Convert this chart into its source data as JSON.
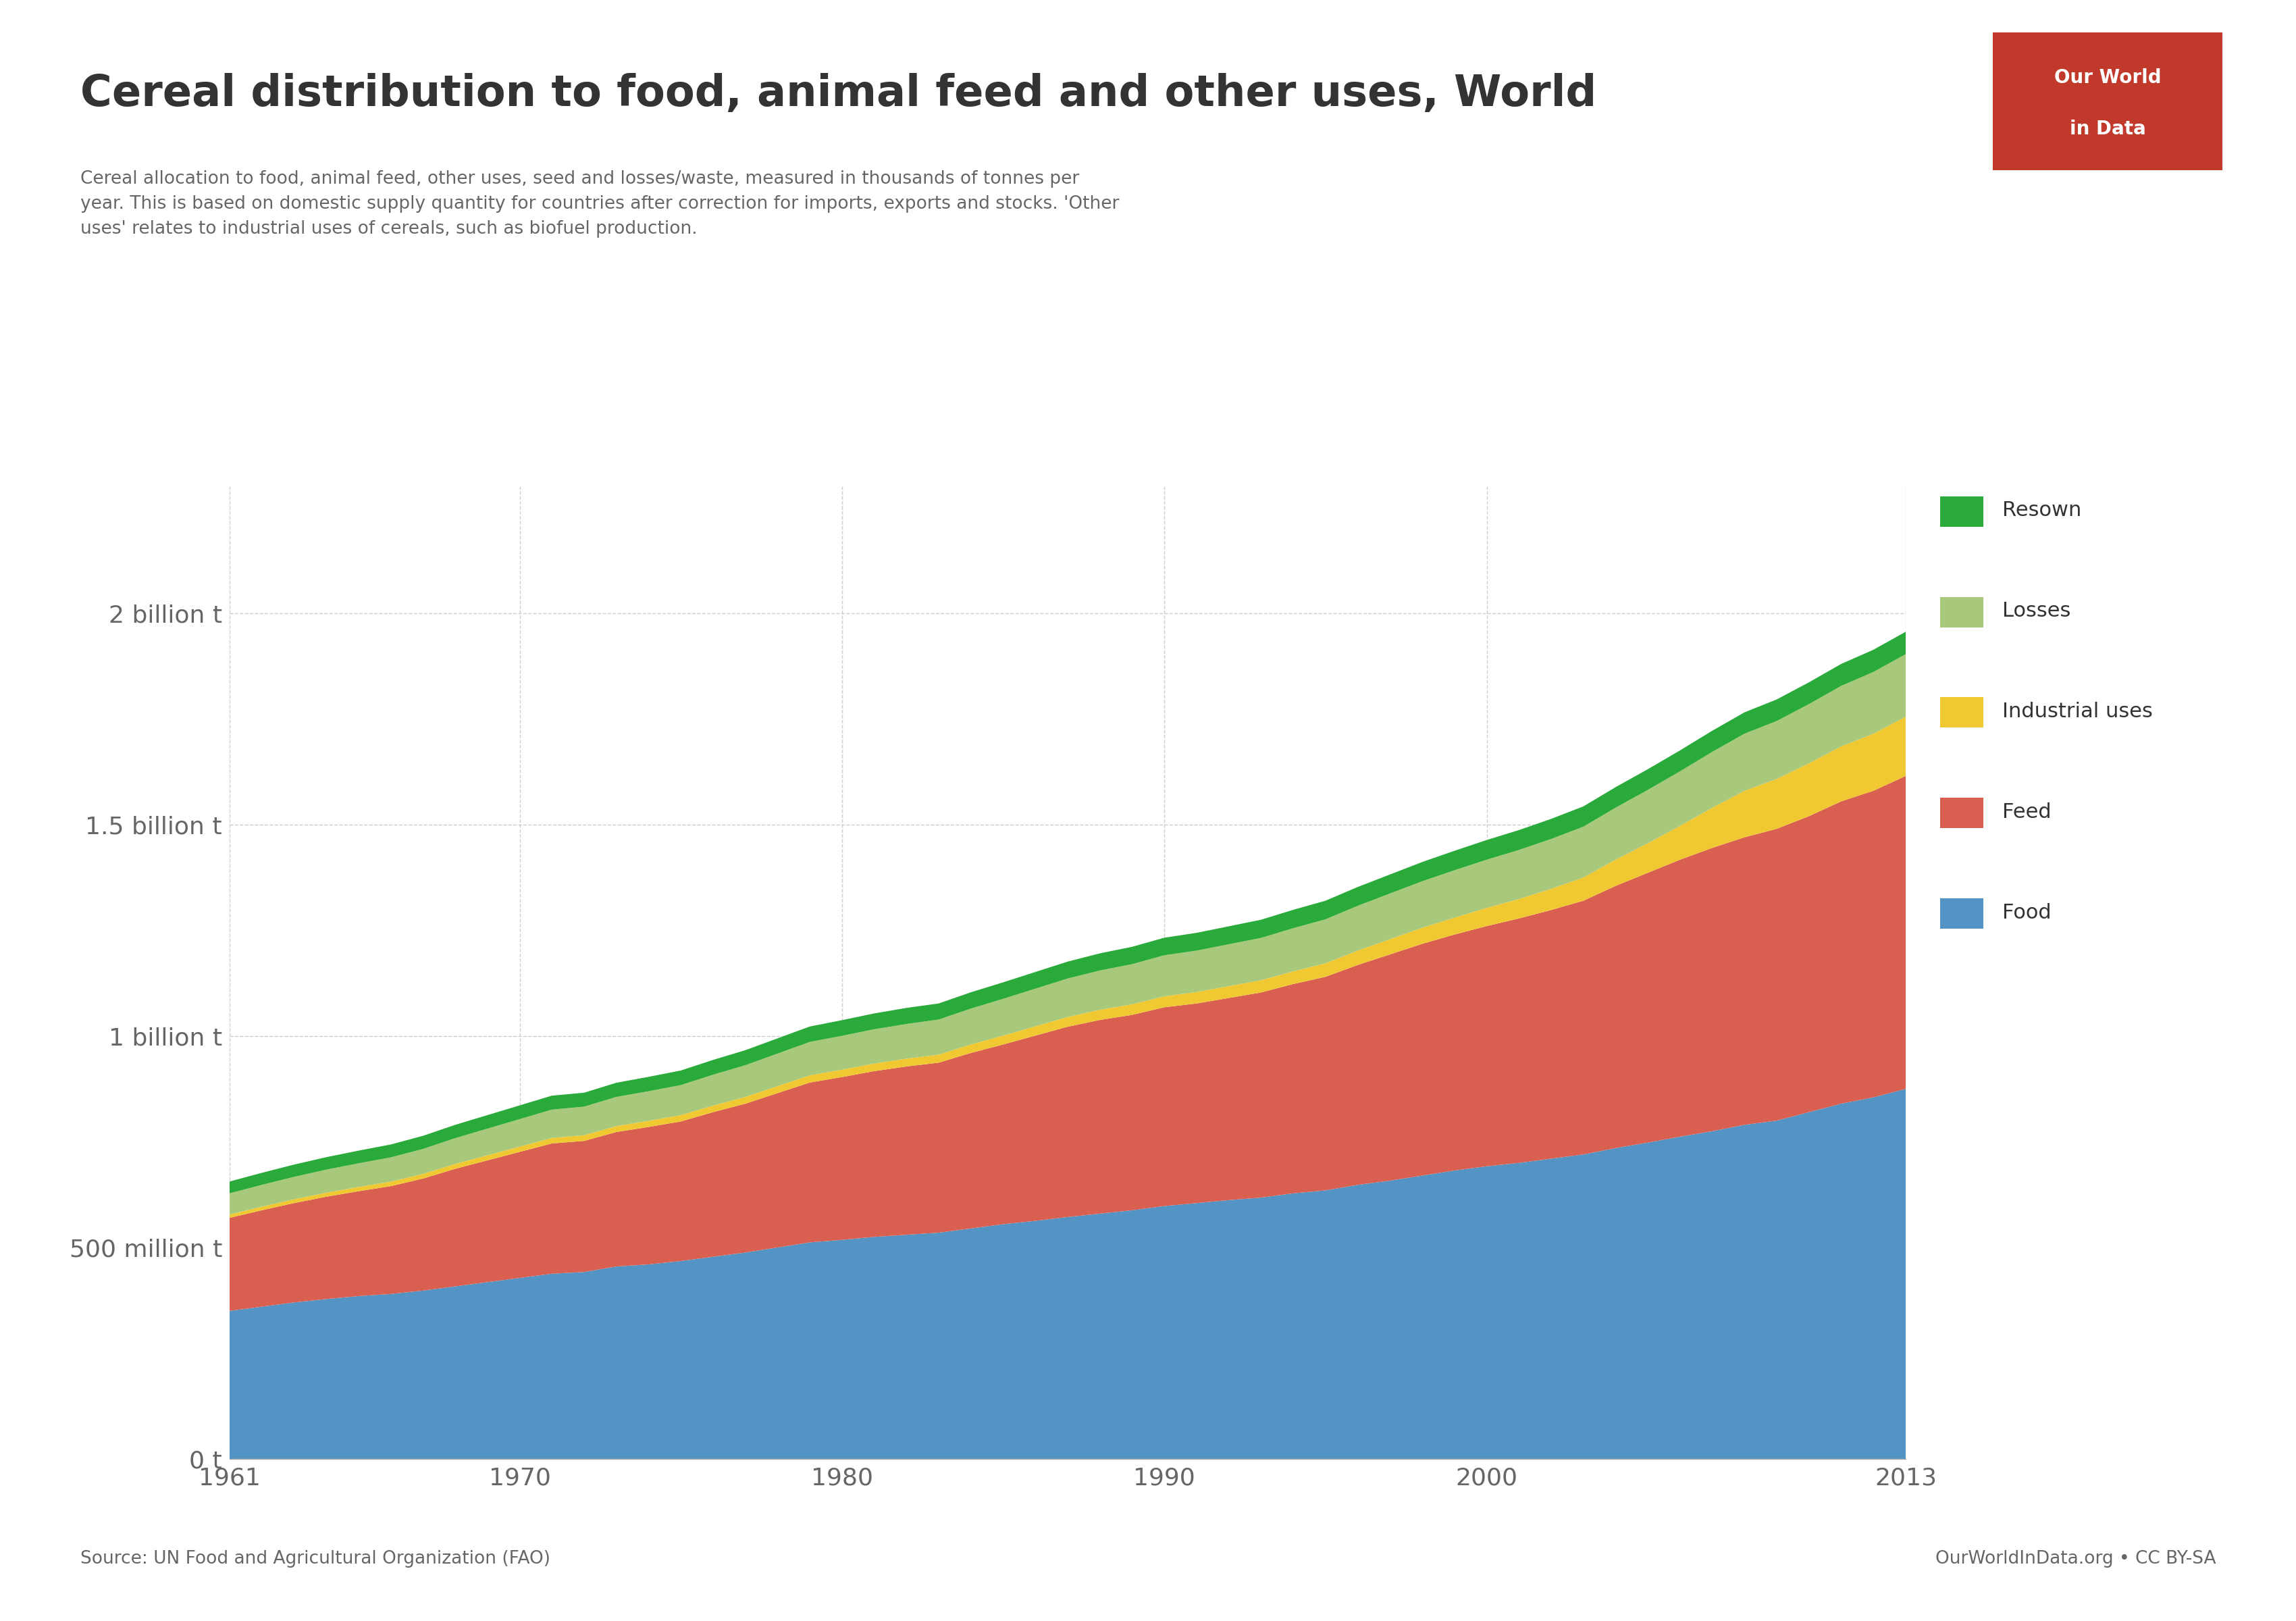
{
  "title": "Cereal distribution to food, animal feed and other uses, World",
  "subtitle": "Cereal allocation to food, animal feed, other uses, seed and losses/waste, measured in thousands of tonnes per\nyear. This is based on domestic supply quantity for countries after correction for imports, exports and stocks. 'Other\nuses' relates to industrial uses of cereals, such as biofuel production.",
  "source_text": "Source: UN Food and Agricultural Organization (FAO)",
  "owid_text": "OurWorldInData.org • CC BY-SA",
  "years": [
    1961,
    1962,
    1963,
    1964,
    1965,
    1966,
    1967,
    1968,
    1969,
    1970,
    1971,
    1972,
    1973,
    1974,
    1975,
    1976,
    1977,
    1978,
    1979,
    1980,
    1981,
    1982,
    1983,
    1984,
    1985,
    1986,
    1987,
    1988,
    1989,
    1990,
    1991,
    1992,
    1993,
    1994,
    1995,
    1996,
    1997,
    1998,
    1999,
    2000,
    2001,
    2002,
    2003,
    2004,
    2005,
    2006,
    2007,
    2008,
    2009,
    2010,
    2011,
    2012,
    2013
  ],
  "food": [
    350000,
    360000,
    370000,
    378000,
    385000,
    390000,
    398000,
    408000,
    418000,
    428000,
    438000,
    442000,
    455000,
    460000,
    468000,
    478000,
    488000,
    500000,
    512000,
    518000,
    525000,
    530000,
    535000,
    545000,
    555000,
    563000,
    572000,
    580000,
    588000,
    598000,
    605000,
    612000,
    618000,
    628000,
    635000,
    648000,
    658000,
    670000,
    682000,
    692000,
    700000,
    710000,
    720000,
    735000,
    748000,
    762000,
    775000,
    790000,
    800000,
    820000,
    840000,
    855000,
    875000
  ],
  "feed": [
    220000,
    228000,
    235000,
    242000,
    248000,
    255000,
    265000,
    278000,
    288000,
    298000,
    308000,
    310000,
    318000,
    325000,
    330000,
    342000,
    352000,
    365000,
    378000,
    385000,
    392000,
    398000,
    402000,
    415000,
    425000,
    438000,
    450000,
    458000,
    462000,
    470000,
    472000,
    478000,
    485000,
    495000,
    505000,
    520000,
    535000,
    548000,
    558000,
    568000,
    578000,
    588000,
    600000,
    620000,
    638000,
    655000,
    670000,
    680000,
    690000,
    700000,
    715000,
    725000,
    740000
  ],
  "industrial": [
    8000,
    8500,
    9000,
    9500,
    10000,
    10500,
    11000,
    11500,
    12000,
    12500,
    13000,
    13500,
    14000,
    14500,
    15000,
    15500,
    16000,
    16500,
    17000,
    17500,
    18000,
    18500,
    19000,
    20000,
    21000,
    22000,
    23000,
    24000,
    25000,
    26000,
    27000,
    28000,
    29000,
    30000,
    32000,
    34000,
    36000,
    38000,
    40000,
    43000,
    46000,
    50000,
    55000,
    62000,
    70000,
    80000,
    95000,
    110000,
    118000,
    125000,
    130000,
    135000,
    140000
  ],
  "losses": [
    50000,
    51500,
    53000,
    54500,
    56000,
    57500,
    59000,
    61000,
    63000,
    65000,
    67000,
    67500,
    69000,
    70000,
    71000,
    73000,
    75000,
    77000,
    79000,
    80000,
    81000,
    82000,
    83000,
    85000,
    87000,
    89000,
    91000,
    93000,
    95000,
    97000,
    98000,
    99000,
    100000,
    102000,
    104000,
    106000,
    108000,
    110000,
    112000,
    114000,
    116000,
    118000,
    120000,
    123000,
    126000,
    129000,
    132000,
    135000,
    137000,
    140000,
    143000,
    146000,
    148000
  ],
  "resown": [
    28000,
    28500,
    29000,
    29500,
    30000,
    30500,
    31000,
    31500,
    32000,
    32500,
    33000,
    33000,
    33500,
    34000,
    34500,
    35000,
    35500,
    36000,
    36500,
    37000,
    37500,
    38000,
    38000,
    38500,
    39000,
    39500,
    40000,
    40500,
    41000,
    41500,
    42000,
    42500,
    43000,
    43500,
    44000,
    44500,
    45000,
    45500,
    46000,
    46500,
    47000,
    47500,
    48000,
    48500,
    49000,
    49500,
    50000,
    50500,
    51000,
    51500,
    52000,
    52500,
    53000
  ],
  "food_color": "#5494c4",
  "feed_color": "#d95f51",
  "industrial_color": "#f0c832",
  "losses_color": "#a8c87c",
  "resown_color": "#2aaa3a",
  "background": "#ffffff",
  "text_color": "#666666",
  "title_color": "#333333",
  "ytick_labels": [
    "0 t",
    "500 million t",
    "1 billion t",
    "1.5 billion t",
    "2 billion t"
  ],
  "ytick_values": [
    0,
    500000,
    1000000,
    1500000,
    2000000
  ],
  "xtick_labels": [
    "1961",
    "1970",
    "1980",
    "1990",
    "2000",
    "2013"
  ],
  "xtick_values": [
    1961,
    1970,
    1980,
    1990,
    2000,
    2013
  ],
  "owid_box_color": "#c0392b",
  "legend_labels": [
    "Resown",
    "Losses",
    "Industrial uses",
    "Feed",
    "Food"
  ],
  "legend_colors": [
    "#2aaa3a",
    "#a8c87c",
    "#f0c832",
    "#d95f51",
    "#5494c4"
  ],
  "ylim_max": 2300000
}
